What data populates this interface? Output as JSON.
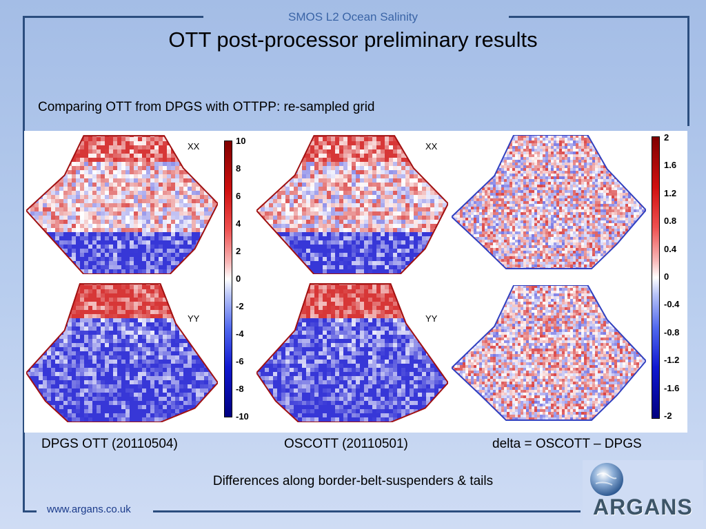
{
  "header": {
    "subtitle": "SMOS L2 Ocean Salinity",
    "title": "OTT post-processor preliminary results"
  },
  "intro": "Comparing OTT from DPGS with OTTPP: re-sampled grid",
  "panels": {
    "xx_label": "XX",
    "yy_label": "YY"
  },
  "colorbar_left": {
    "ticks": [
      "10",
      "8",
      "6",
      "4",
      "2",
      "0",
      "-2",
      "-4",
      "-6",
      "-8",
      "-10"
    ]
  },
  "colorbar_right": {
    "ticks": [
      "2",
      "1.6",
      "1.2",
      "0.8",
      "0.4",
      "0",
      "-0.4",
      "-0.8",
      "-1.2",
      "-1.6",
      "-2"
    ]
  },
  "captions": {
    "dpgs": "DPGS OTT (20110504)",
    "oscott": "OSCOTT (20110501)",
    "delta": "delta = OSCOTT – DPGS"
  },
  "note": "Differences along border-belt-suspenders & tails",
  "footer": {
    "url": "www.argans.co.uk",
    "logo_text": "ARGANS"
  },
  "colors": {
    "frame": "#2b4d7e",
    "positive": "#d61f1f",
    "negative": "#1f3fd6"
  }
}
